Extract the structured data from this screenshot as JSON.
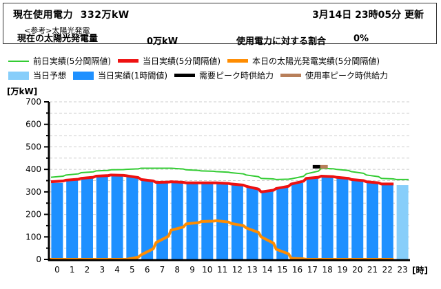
{
  "header": {
    "current_usage_label": "現在使用電力",
    "current_usage_value": "332万kW",
    "update_time": "3月14日 23時05分 更新",
    "reference_label": "<参考>太陽光発電",
    "solar_label": "現在の太陽光発電量",
    "solar_value": "0万kW",
    "ratio_label": "使用電力に対する割合",
    "ratio_value": "0%"
  },
  "legend": [
    {
      "label": "前日実績(5分間隔値)",
      "color": "#33cc33",
      "kind": "line"
    },
    {
      "label": "当日実績(5分間隔値)",
      "color": "#ee1111",
      "kind": "thick"
    },
    {
      "label": "本日の太陽光発電実績(5分間隔値)",
      "color": "#ff8c00",
      "kind": "thick"
    },
    {
      "label": "当日予想",
      "color": "#87cefa",
      "kind": "box"
    },
    {
      "label": "当日実績(1時間値)",
      "color": "#1e90ff",
      "kind": "box"
    },
    {
      "label": "需要ピーク時供給力",
      "color": "#000000",
      "kind": "thick"
    },
    {
      "label": "使用率ピーク時供給力",
      "color": "#b87f5a",
      "kind": "thick"
    }
  ],
  "axes": {
    "y_unit": "[万kW]",
    "x_unit": "[時]"
  },
  "colors": {
    "grid": "#cccccc",
    "axis": "#000000",
    "actual_bar": "#1e90ff",
    "forecast_bar": "#87cefa",
    "prev_day": "#33cc33",
    "today": "#ee1111",
    "solar": "#ff8c00",
    "demand_peak": "#000000",
    "usage_peak": "#b87f5a"
  },
  "chart_data": {
    "type": "bar",
    "title": "",
    "xlabel": "[時]",
    "ylabel": "[万kW]",
    "ylim": [
      0,
      700
    ],
    "yticks": [
      0,
      100,
      200,
      300,
      400,
      500,
      600,
      700
    ],
    "grid": true,
    "categories": [
      "0",
      "1",
      "2",
      "3",
      "4",
      "5",
      "6",
      "7",
      "8",
      "9",
      "10",
      "11",
      "12",
      "13",
      "14",
      "15",
      "16",
      "17",
      "18",
      "19",
      "20",
      "21",
      "22",
      "23"
    ],
    "series": [
      {
        "name": "当日実績(1時間値)",
        "type": "bar",
        "color": "#1e90ff",
        "values": [
          340,
          350,
          360,
          370,
          375,
          370,
          350,
          340,
          340,
          335,
          335,
          335,
          330,
          320,
          305,
          320,
          340,
          360,
          370,
          365,
          355,
          345,
          335,
          null
        ]
      },
      {
        "name": "当日予想",
        "type": "bar",
        "color": "#87cefa",
        "values": [
          null,
          null,
          null,
          null,
          null,
          null,
          null,
          null,
          null,
          null,
          null,
          null,
          null,
          null,
          null,
          null,
          null,
          null,
          null,
          null,
          null,
          null,
          null,
          330
        ]
      },
      {
        "name": "前日実績(5分間隔値)",
        "type": "line",
        "color": "#33cc33",
        "values": [
          365,
          375,
          385,
          393,
          398,
          400,
          405,
          405,
          405,
          398,
          393,
          390,
          385,
          375,
          360,
          355,
          358,
          380,
          405,
          400,
          390,
          375,
          360,
          355
        ]
      },
      {
        "name": "当日実績(5分間隔値)",
        "type": "line",
        "color": "#ee1111",
        "values": [
          345,
          352,
          360,
          370,
          375,
          372,
          355,
          342,
          345,
          340,
          340,
          340,
          335,
          325,
          300,
          315,
          335,
          360,
          370,
          365,
          355,
          345,
          335,
          null
        ]
      },
      {
        "name": "本日の太陽光発電実績(5分間隔値)",
        "type": "line",
        "color": "#ff8c00",
        "values": [
          0,
          0,
          0,
          0,
          0,
          0,
          20,
          75,
          130,
          158,
          168,
          172,
          160,
          140,
          100,
          45,
          5,
          0,
          0,
          0,
          0,
          0,
          0,
          null
        ]
      }
    ],
    "markers": [
      {
        "name": "需要ピーク時供給力",
        "hour": 17.5,
        "value": 410,
        "color": "#000000"
      },
      {
        "name": "使用率ピーク時供給力",
        "hour": 18.0,
        "value": 410,
        "color": "#b87f5a"
      }
    ],
    "legend_position": "top"
  }
}
